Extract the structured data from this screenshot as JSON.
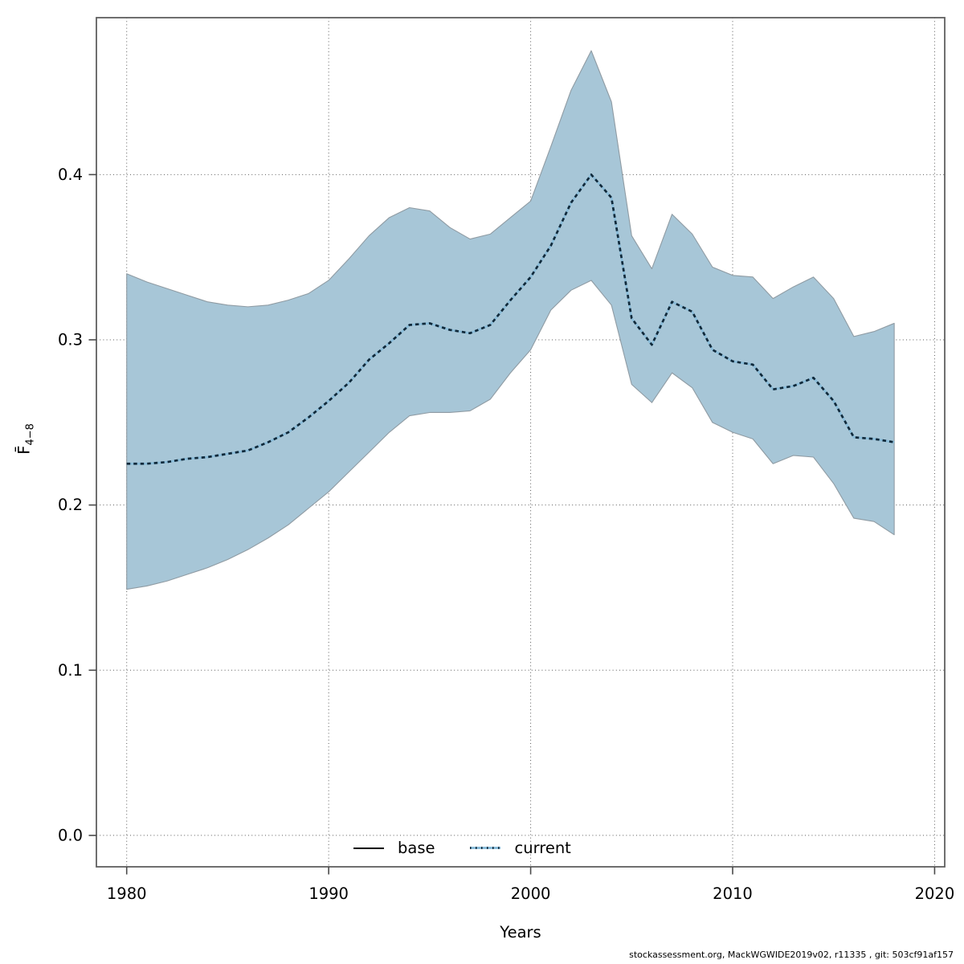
{
  "chart": {
    "xlabel": "Years",
    "ylabel_main": "F̄",
    "ylabel_sub": "4−8",
    "legend": {
      "base_label": "base",
      "current_label": "current"
    },
    "footer": "stockassessment.org, MackWGWIDE2019v02, r11335 , git: 503cf91af157"
  },
  "chart_data": {
    "type": "line",
    "title": "",
    "xlabel": "Years",
    "ylabel": "F̄4−8",
    "grid": "dotted",
    "legend_position": "bottom-center-inside",
    "legend_entries": [
      {
        "name": "base",
        "style": "solid",
        "color": "#000000"
      },
      {
        "name": "current",
        "style": "dotted",
        "color": "#10293a"
      }
    ],
    "xlim": [
      1978.5,
      2020.5
    ],
    "ylim": [
      -0.019,
      0.495
    ],
    "xticks": [
      {
        "v": 1980,
        "label": "1980"
      },
      {
        "v": 1990,
        "label": "1990"
      },
      {
        "v": 2000,
        "label": "2000"
      },
      {
        "v": 2010,
        "label": "2010"
      },
      {
        "v": 2020,
        "label": "2020"
      }
    ],
    "yticks": [
      {
        "v": 0.0,
        "label": "0.0"
      },
      {
        "v": 0.1,
        "label": "0.1"
      },
      {
        "v": 0.2,
        "label": "0.2"
      },
      {
        "v": 0.3,
        "label": "0.3"
      },
      {
        "v": 0.4,
        "label": "0.4"
      }
    ],
    "x": [
      1980,
      1981,
      1982,
      1983,
      1984,
      1985,
      1986,
      1987,
      1988,
      1989,
      1990,
      1991,
      1992,
      1993,
      1994,
      1995,
      1996,
      1997,
      1998,
      1999,
      2000,
      2001,
      2002,
      2003,
      2004,
      2005,
      2006,
      2007,
      2008,
      2009,
      2010,
      2011,
      2012,
      2013,
      2014,
      2015,
      2016,
      2017,
      2018
    ],
    "series": [
      {
        "name": "current",
        "values": [
          0.225,
          0.225,
          0.226,
          0.228,
          0.229,
          0.231,
          0.233,
          0.238,
          0.244,
          0.253,
          0.263,
          0.274,
          0.288,
          0.298,
          0.309,
          0.31,
          0.306,
          0.304,
          0.309,
          0.324,
          0.338,
          0.357,
          0.383,
          0.4,
          0.386,
          0.313,
          0.297,
          0.323,
          0.317,
          0.294,
          0.287,
          0.285,
          0.27,
          0.272,
          0.277,
          0.263,
          0.241,
          0.24,
          0.238
        ]
      },
      {
        "name": "current_ci_upper",
        "values": [
          0.34,
          0.335,
          0.331,
          0.327,
          0.323,
          0.321,
          0.32,
          0.321,
          0.324,
          0.328,
          0.336,
          0.349,
          0.363,
          0.374,
          0.38,
          0.378,
          0.368,
          0.361,
          0.364,
          0.374,
          0.384,
          0.417,
          0.451,
          0.475,
          0.444,
          0.363,
          0.343,
          0.376,
          0.364,
          0.344,
          0.339,
          0.338,
          0.325,
          0.332,
          0.338,
          0.325,
          0.302,
          0.305,
          0.31
        ]
      },
      {
        "name": "current_ci_lower",
        "values": [
          0.149,
          0.151,
          0.154,
          0.158,
          0.162,
          0.167,
          0.173,
          0.18,
          0.188,
          0.198,
          0.208,
          0.22,
          0.232,
          0.244,
          0.254,
          0.256,
          0.256,
          0.257,
          0.264,
          0.28,
          0.294,
          0.318,
          0.33,
          0.336,
          0.321,
          0.273,
          0.262,
          0.28,
          0.271,
          0.25,
          0.244,
          0.24,
          0.225,
          0.23,
          0.229,
          0.213,
          0.192,
          0.19,
          0.182
        ]
      }
    ],
    "colors": {
      "band_fill": "#a7c6d7",
      "band_border": "#8f9ba3",
      "line_light": "#8abcd9",
      "line_dark": "#10293a",
      "grid": "#404040",
      "frame": "#5f5f5f",
      "tick": "#4a4a4a",
      "text": "#000000"
    }
  }
}
